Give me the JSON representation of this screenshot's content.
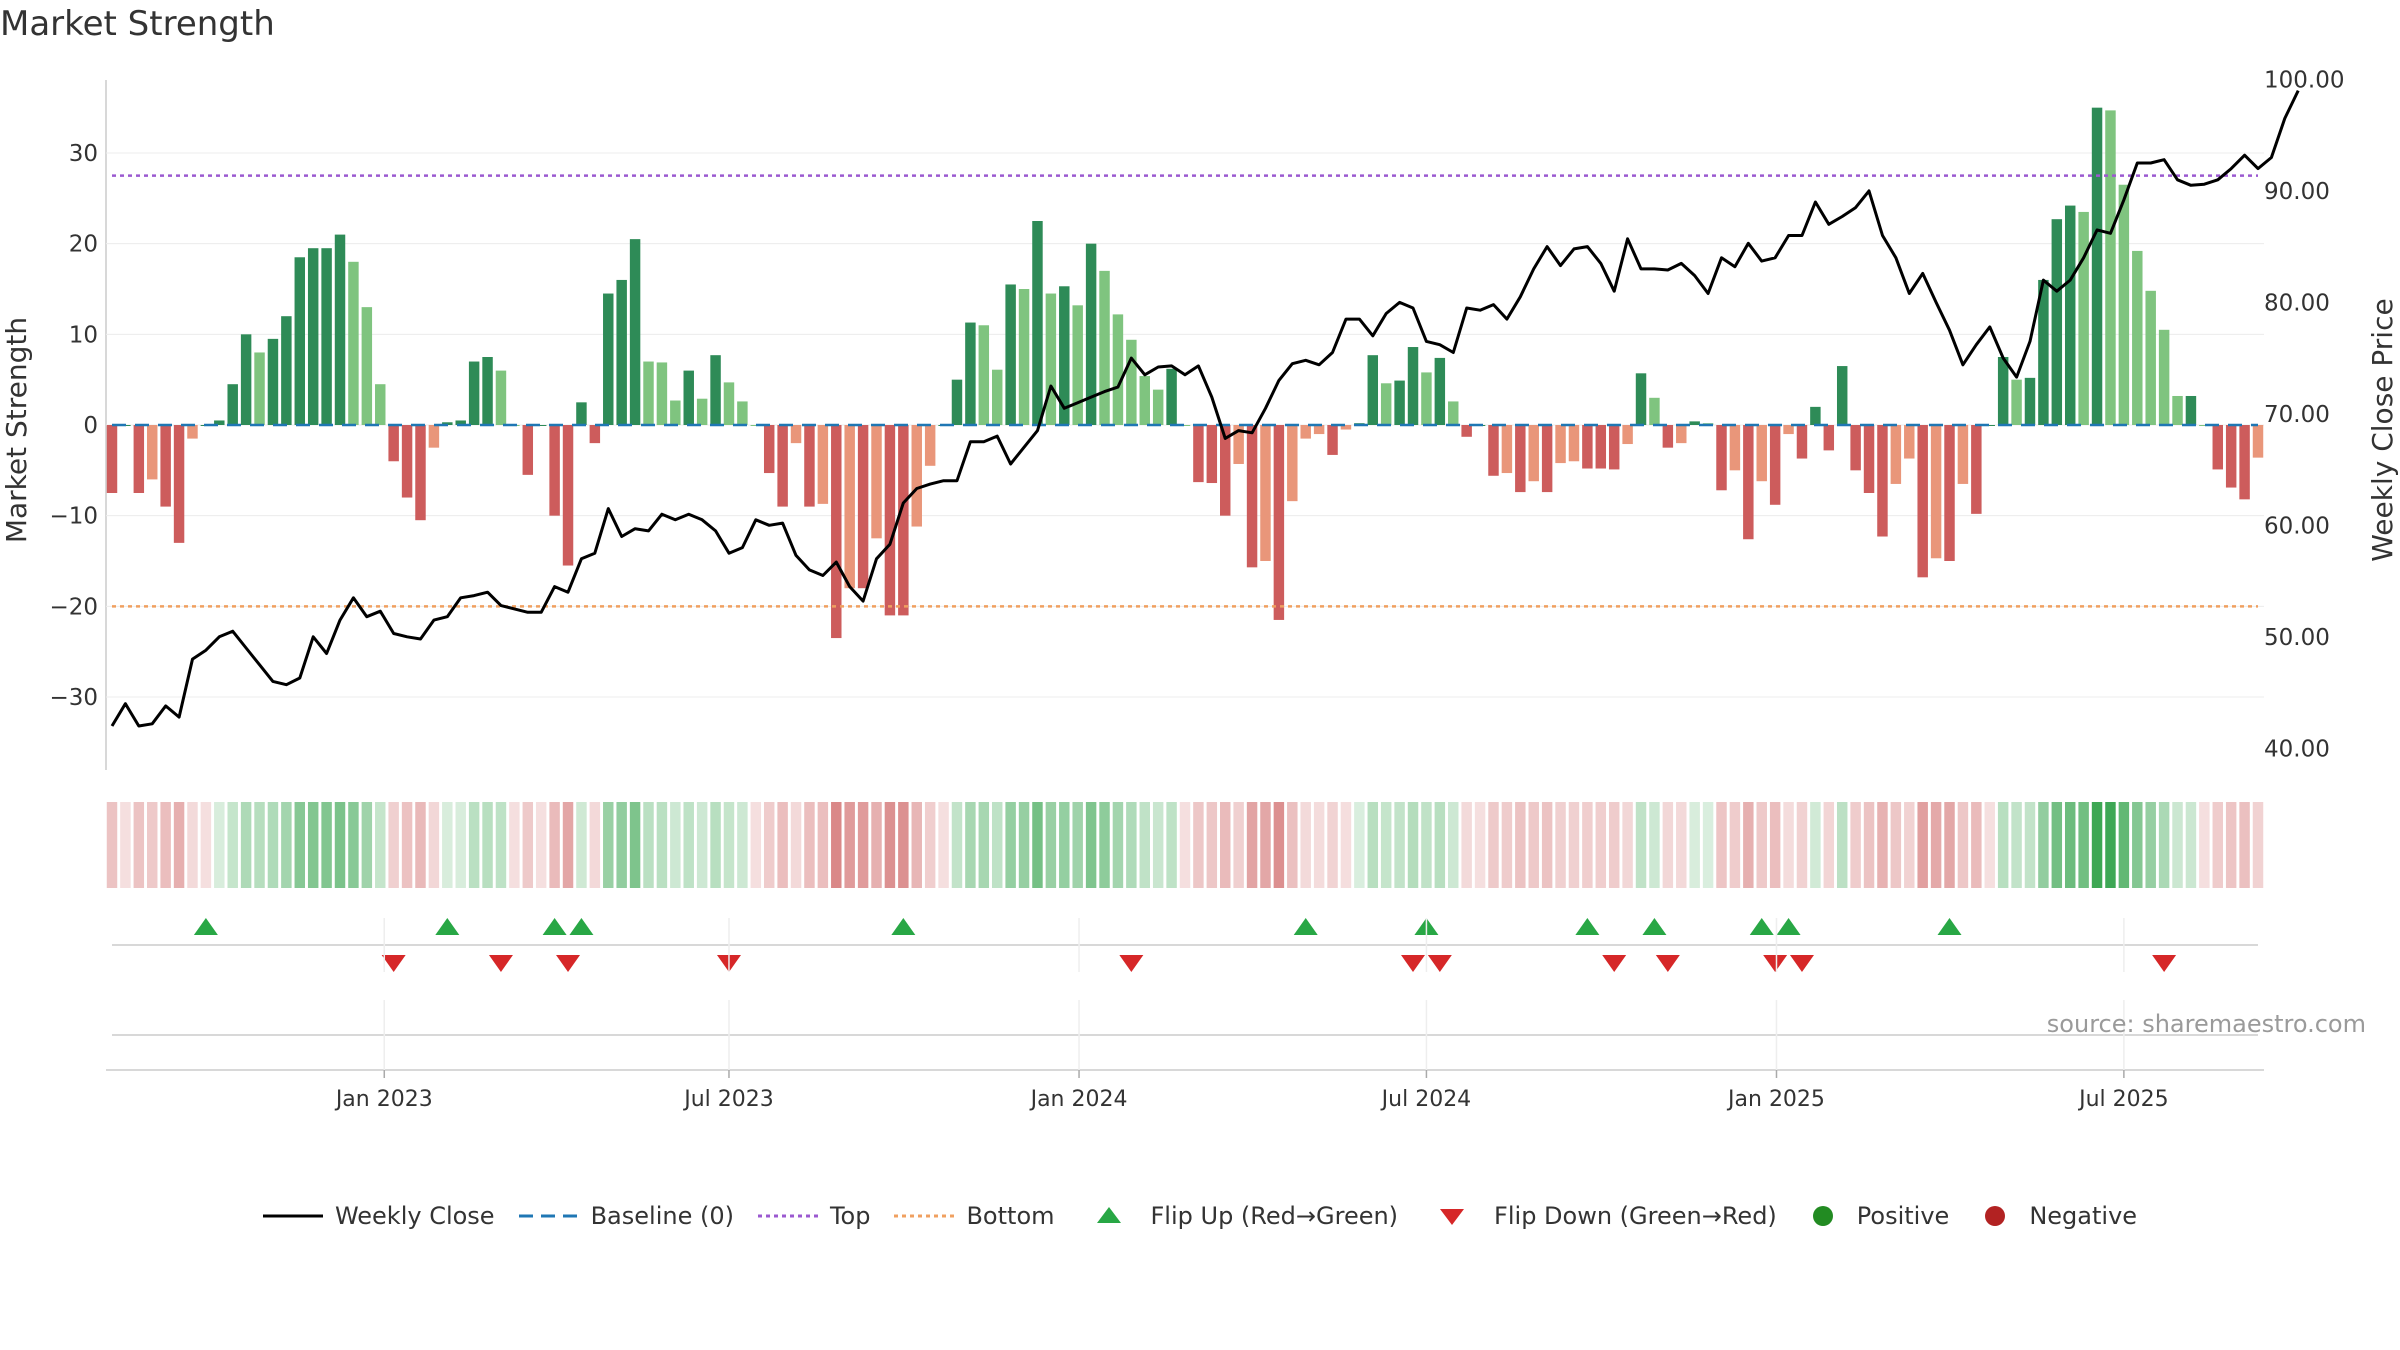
{
  "title": "Market Strength",
  "source": "source: sharemaestro.com",
  "legend": {
    "weekly_close": "Weekly Close",
    "baseline": "Baseline (0)",
    "top": "Top",
    "bottom": "Bottom",
    "flip_up": "Flip Up (Red→Green)",
    "flip_down": "Flip Down (Green→Red)",
    "positive": "Positive",
    "negative": "Negative"
  },
  "colors": {
    "dark_green": "#2e8b57",
    "light_green": "#7fc47f",
    "dark_red": "#cd5c5c",
    "light_red": "#e9967a",
    "top_line": "#9b59d0",
    "bottom_line": "#f0a060",
    "baseline": "#1f77b4",
    "price_line": "#000000",
    "flip_up": "#28a745",
    "flip_down": "#d62728",
    "positive_dot": "#228b22",
    "negative_dot": "#b22222"
  },
  "chart_data": {
    "type": "bar",
    "ylabel": "Market Strength",
    "y2label": "Weekly Close Price",
    "ylim": [
      -37.5,
      37.5
    ],
    "y2lim": [
      38.5,
      99.5
    ],
    "yticks": [
      "−30",
      "−20",
      "−10",
      "0",
      "10",
      "20",
      "30"
    ],
    "y2ticks": [
      "40.00",
      "50.00",
      "60.00",
      "70.00",
      "80.00",
      "90.00",
      "100.00"
    ],
    "xticks": [
      "Jan 2023",
      "Jul 2023",
      "Jan 2024",
      "Jul 2024",
      "Jan 2025",
      "Jul 2025"
    ],
    "top_level": 27.5,
    "bottom_level": -20,
    "grid": true,
    "series": [
      {
        "name": "Market Strength",
        "values": [
          -7.5,
          0,
          -7.5,
          -6,
          -9,
          -13,
          -1.5,
          0,
          0.5,
          4.5,
          10,
          8,
          9.5,
          12,
          18.5,
          19.5,
          19.5,
          21,
          18,
          13,
          4.5,
          -4,
          -8,
          -10.5,
          -2.5,
          0.3,
          0.5,
          7,
          7.5,
          6,
          0,
          -5.5,
          0,
          -10,
          -15.5,
          2.5,
          -2,
          14.5,
          16,
          20.5,
          7,
          6.9,
          2.7,
          6,
          2.9,
          7.7,
          4.7,
          2.6,
          0,
          -5.3,
          -9,
          -2,
          -9,
          -8.7,
          -23.5,
          -18,
          -18,
          -12.5,
          -21,
          -21,
          -11.2,
          -4.5,
          0,
          5,
          11.3,
          11,
          6.1,
          15.5,
          15,
          22.5,
          14.5,
          15.3,
          13.2,
          20,
          17,
          12.2,
          9.4,
          5.4,
          3.9,
          6.2,
          0,
          -6.3,
          -6.4,
          -10,
          -4.3,
          -15.7,
          -15,
          -21.5,
          -8.4,
          -1.5,
          -1,
          -3.3,
          -0.5,
          0.2,
          7.7,
          4.6,
          4.9,
          8.6,
          5.8,
          7.4,
          2.6,
          -1.3,
          0,
          -5.6,
          -5.3,
          -7.4,
          -6.2,
          -7.4,
          -4.2,
          -4,
          -4.8,
          -4.8,
          -4.9,
          -2.1,
          5.7,
          3,
          -2.5,
          -2,
          0.4,
          0.2,
          -7.2,
          -5,
          -12.6,
          -6.2,
          -8.8,
          -1,
          -3.7,
          2,
          -2.8,
          6.5,
          -5,
          -7.5,
          -12.3,
          -6.5,
          -3.7,
          -16.8,
          -14.7,
          -15,
          -6.5,
          -9.8,
          0,
          7.5,
          5,
          5.2,
          16,
          22.7,
          24.2,
          23.5,
          35,
          34.7,
          26.5,
          19.2,
          14.8,
          10.5,
          3.2,
          3.2,
          0,
          -4.9,
          -6.9,
          -8.2,
          -3.6
        ]
      },
      {
        "name": "Weekly Close",
        "values": [
          42,
          44,
          42,
          42.2,
          43.8,
          42.8,
          48,
          48.8,
          50,
          50.5,
          49,
          47.5,
          46,
          45.7,
          46.3,
          50,
          48.5,
          51.5,
          53.5,
          51.8,
          52.3,
          50.3,
          50,
          49.8,
          51.5,
          51.8,
          53.5,
          53.7,
          54,
          52.8,
          52.5,
          52.2,
          52.2,
          54.5,
          54,
          57,
          57.5,
          61.5,
          59,
          59.7,
          59.5,
          61,
          60.5,
          61,
          60.5,
          59.5,
          57.5,
          58,
          60.5,
          60,
          60.2,
          57.3,
          56,
          55.5,
          56.7,
          54.5,
          53.2,
          57,
          58.3,
          62,
          63.3,
          63.7,
          64,
          64,
          67.5,
          67.5,
          68,
          65.5,
          67,
          68.5,
          72.5,
          70.5,
          71,
          71.5,
          72,
          72.4,
          75,
          73.5,
          74.2,
          74.3,
          73.5,
          74.3,
          71.5,
          67.8,
          68.5,
          68.3,
          70.5,
          73,
          74.5,
          74.8,
          74.4,
          75.5,
          78.5,
          78.5,
          77,
          79,
          80,
          79.5,
          76.5,
          76.2,
          75.5,
          79.5,
          79.3,
          79.8,
          78.5,
          80.5,
          83,
          85,
          83.3,
          84.8,
          85,
          83.5,
          81,
          85.7,
          83,
          83,
          82.9,
          83.5,
          82.4,
          80.8,
          84,
          83.2,
          85.3,
          83.7,
          84,
          86,
          86,
          89,
          87,
          87.7,
          88.5,
          90,
          86,
          84,
          80.8,
          82.6,
          80,
          77.5,
          74.4,
          76.2,
          77.8,
          75,
          73.3,
          76.5,
          82,
          81,
          82,
          84,
          86.5,
          86.2,
          89.2,
          92.5,
          92.5,
          92.8,
          91,
          90.5,
          90.6,
          91,
          92,
          93.2,
          92,
          93,
          96.5,
          99
        ]
      }
    ],
    "flip_up_weeks": [
      7,
      25,
      33,
      35,
      59,
      89,
      98,
      110,
      115,
      123,
      125,
      137
    ],
    "flip_down_weeks": [
      21,
      29,
      34,
      46,
      76,
      97,
      99,
      112,
      116,
      124,
      126,
      153
    ],
    "color_strip": "weekly strength heat strip (green = positive, red = negative)"
  }
}
